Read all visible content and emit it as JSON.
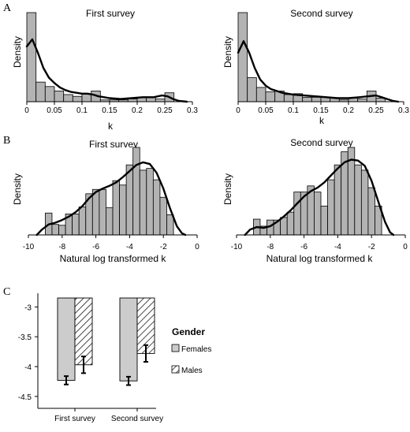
{
  "panels": [
    {
      "panel_label": "A",
      "subplots": [
        {
          "type": "bar",
          "title": "First survey",
          "xlabel": "k",
          "ylabel": "Density",
          "xlim": [
            0,
            0.3
          ],
          "x_ticks": [
            "0",
            "0.05",
            "0.1",
            "0.15",
            "0.2",
            "0.25",
            "0.3"
          ],
          "bin_edges": [
            0,
            0.0167,
            0.0333,
            0.05,
            0.0667,
            0.0833,
            0.1,
            0.1167,
            0.1333,
            0.15,
            0.1667,
            0.1833,
            0.2,
            0.2167,
            0.2333,
            0.25,
            0.2667
          ],
          "values": [
            1.0,
            0.22,
            0.17,
            0.12,
            0.08,
            0.06,
            0.09,
            0.12,
            0.02,
            0.02,
            0.02,
            0.03,
            0.05,
            0.05,
            0.03,
            0.1
          ],
          "density_curve": [
            [
              0.0,
              0.62
            ],
            [
              0.01,
              0.7
            ],
            [
              0.02,
              0.55
            ],
            [
              0.03,
              0.38
            ],
            [
              0.04,
              0.27
            ],
            [
              0.05,
              0.21
            ],
            [
              0.06,
              0.16
            ],
            [
              0.07,
              0.13
            ],
            [
              0.08,
              0.11
            ],
            [
              0.09,
              0.1
            ],
            [
              0.1,
              0.09
            ],
            [
              0.11,
              0.09
            ],
            [
              0.12,
              0.08
            ],
            [
              0.13,
              0.06
            ],
            [
              0.14,
              0.05
            ],
            [
              0.15,
              0.04
            ],
            [
              0.17,
              0.03
            ],
            [
              0.19,
              0.04
            ],
            [
              0.21,
              0.05
            ],
            [
              0.23,
              0.05
            ],
            [
              0.245,
              0.07
            ],
            [
              0.255,
              0.06
            ],
            [
              0.265,
              0.03
            ],
            [
              0.275,
              0.01
            ],
            [
              0.29,
              0.0
            ]
          ]
        },
        {
          "type": "bar",
          "title": "Second survey",
          "xlabel": "k",
          "ylabel": "Density",
          "xlim": [
            0,
            0.3
          ],
          "x_ticks": [
            "0",
            "0.05",
            "0.1",
            "0.15",
            "0.2",
            "0.25",
            "0.3"
          ],
          "bin_edges": [
            0,
            0.0167,
            0.0333,
            0.05,
            0.0667,
            0.0833,
            0.1,
            0.1167,
            0.1333,
            0.15,
            0.1667,
            0.1833,
            0.2,
            0.2167,
            0.2333,
            0.25,
            0.2667
          ],
          "values": [
            1.0,
            0.27,
            0.16,
            0.11,
            0.12,
            0.08,
            0.09,
            0.05,
            0.05,
            0.05,
            0.04,
            0.02,
            0.04,
            0.03,
            0.12,
            0.04
          ],
          "density_curve": [
            [
              0.0,
              0.55
            ],
            [
              0.01,
              0.68
            ],
            [
              0.02,
              0.55
            ],
            [
              0.03,
              0.38
            ],
            [
              0.04,
              0.25
            ],
            [
              0.05,
              0.18
            ],
            [
              0.06,
              0.14
            ],
            [
              0.07,
              0.12
            ],
            [
              0.08,
              0.1
            ],
            [
              0.09,
              0.09
            ],
            [
              0.1,
              0.08
            ],
            [
              0.12,
              0.07
            ],
            [
              0.14,
              0.06
            ],
            [
              0.16,
              0.05
            ],
            [
              0.18,
              0.04
            ],
            [
              0.2,
              0.04
            ],
            [
              0.22,
              0.05
            ],
            [
              0.235,
              0.06
            ],
            [
              0.25,
              0.07
            ],
            [
              0.26,
              0.05
            ],
            [
              0.27,
              0.03
            ],
            [
              0.28,
              0.01
            ],
            [
              0.29,
              0.0
            ]
          ]
        }
      ]
    },
    {
      "panel_label": "B",
      "subplots": [
        {
          "type": "bar",
          "title": "First survey",
          "xlabel": "Natural log transformed k",
          "ylabel": "Density",
          "xlim": [
            -10,
            0
          ],
          "x_ticks": [
            "-10",
            "-8",
            "-6",
            "-4",
            "-2",
            "0"
          ],
          "bin_edges": [
            -9.0,
            -8.6,
            -8.2,
            -7.8,
            -7.4,
            -7.0,
            -6.6,
            -6.2,
            -5.8,
            -5.4,
            -5.0,
            -4.6,
            -4.2,
            -3.8,
            -3.4,
            -3.0,
            -2.6,
            -2.2,
            -1.8,
            -1.4,
            -1.0
          ],
          "values": [
            0.25,
            0.12,
            0.11,
            0.24,
            0.24,
            0.32,
            0.47,
            0.52,
            0.52,
            0.31,
            0.62,
            0.57,
            0.8,
            1.0,
            0.74,
            0.76,
            0.63,
            0.43,
            0.23,
            0.0
          ],
          "density_curve": [
            [
              -9.5,
              0.0
            ],
            [
              -9.2,
              0.06
            ],
            [
              -8.8,
              0.12
            ],
            [
              -8.4,
              0.14
            ],
            [
              -8.0,
              0.17
            ],
            [
              -7.6,
              0.21
            ],
            [
              -7.2,
              0.26
            ],
            [
              -6.8,
              0.33
            ],
            [
              -6.4,
              0.42
            ],
            [
              -6.0,
              0.49
            ],
            [
              -5.6,
              0.53
            ],
            [
              -5.2,
              0.56
            ],
            [
              -4.8,
              0.6
            ],
            [
              -4.4,
              0.66
            ],
            [
              -4.0,
              0.73
            ],
            [
              -3.6,
              0.8
            ],
            [
              -3.2,
              0.83
            ],
            [
              -2.8,
              0.81
            ],
            [
              -2.4,
              0.71
            ],
            [
              -2.0,
              0.53
            ],
            [
              -1.6,
              0.3
            ],
            [
              -1.2,
              0.1
            ],
            [
              -0.9,
              0.02
            ],
            [
              -0.7,
              0.0
            ]
          ]
        },
        {
          "type": "bar",
          "title": "Second survey",
          "xlabel": "Natural log transformed k",
          "ylabel": "Density",
          "xlim": [
            -10,
            0
          ],
          "x_ticks": [
            "-10",
            "-8",
            "-6",
            "-4",
            "-2",
            "0"
          ],
          "bin_edges": [
            -9.0,
            -8.6,
            -8.2,
            -7.8,
            -7.4,
            -7.0,
            -6.6,
            -6.2,
            -5.8,
            -5.4,
            -5.0,
            -4.6,
            -4.2,
            -3.8,
            -3.4,
            -3.0,
            -2.6,
            -2.2,
            -1.8,
            -1.4,
            -1.0
          ],
          "values": [
            0.18,
            0.1,
            0.17,
            0.17,
            0.2,
            0.26,
            0.49,
            0.49,
            0.56,
            0.49,
            0.33,
            0.63,
            0.8,
            0.95,
            1.0,
            0.8,
            0.74,
            0.54,
            0.33,
            0.0
          ],
          "density_curve": [
            [
              -9.5,
              0.0
            ],
            [
              -9.2,
              0.06
            ],
            [
              -8.8,
              0.09
            ],
            [
              -8.4,
              0.08
            ],
            [
              -8.0,
              0.1
            ],
            [
              -7.6,
              0.15
            ],
            [
              -7.2,
              0.21
            ],
            [
              -6.8,
              0.28
            ],
            [
              -6.4,
              0.36
            ],
            [
              -6.0,
              0.44
            ],
            [
              -5.6,
              0.5
            ],
            [
              -5.2,
              0.54
            ],
            [
              -4.8,
              0.6
            ],
            [
              -4.4,
              0.68
            ],
            [
              -4.0,
              0.76
            ],
            [
              -3.6,
              0.83
            ],
            [
              -3.2,
              0.86
            ],
            [
              -2.8,
              0.85
            ],
            [
              -2.4,
              0.79
            ],
            [
              -2.0,
              0.62
            ],
            [
              -1.6,
              0.38
            ],
            [
              -1.2,
              0.15
            ],
            [
              -0.9,
              0.03
            ],
            [
              -0.7,
              0.0
            ]
          ]
        }
      ]
    },
    {
      "panel_label": "C",
      "subplot": {
        "type": "bar",
        "categories": [
          "First survey",
          "Second survey"
        ],
        "ylim": [
          -4.7,
          -2.85
        ],
        "baseline": -2.85,
        "y_ticks": [
          "-3",
          "-3.5",
          "-4",
          "-4.5"
        ],
        "y_tick_values": [
          -3,
          -3.5,
          -4,
          -4.5
        ],
        "series": [
          {
            "name": "Females",
            "values": [
              -4.23,
              -4.24
            ],
            "error": [
              0.07,
              0.07
            ],
            "fill": "#cccccc",
            "pattern": "solid"
          },
          {
            "name": "Males",
            "values": [
              -3.97,
              -3.78
            ],
            "error": [
              0.14,
              0.14
            ],
            "fill": "#ffffff",
            "pattern": "hatch"
          }
        ],
        "legend": {
          "title": "Gender",
          "placement": "right"
        }
      }
    }
  ],
  "colors": {
    "bar_fill": "#b3b3b3",
    "bar_edge": "#000000",
    "curve": "#000000",
    "females_fill": "#cccccc"
  }
}
